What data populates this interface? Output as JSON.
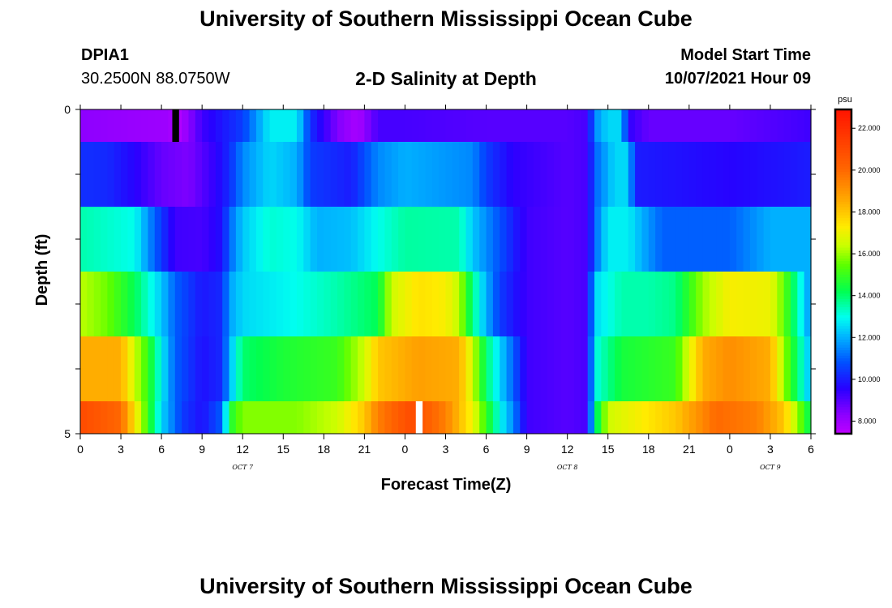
{
  "header": {
    "title": "University of Southern Mississippi Ocean Cube",
    "station": "DPIA1",
    "coordinates": "30.2500N  88.0750W",
    "subtitle": "2-D Salinity at Depth",
    "model_start_label": "Model Start Time",
    "model_start_value": "10/07/2021 Hour 09"
  },
  "footer": {
    "title": "University of Southern Mississippi Ocean Cube"
  },
  "chart_data": {
    "type": "heatmap",
    "title": "2-D Salinity at Depth",
    "xlabel": "Forecast Time(Z)",
    "ylabel": "Depth (ft)",
    "x_hours_range": [
      0,
      54
    ],
    "y_range": [
      0,
      5
    ],
    "y_ticks": [
      "0",
      "5"
    ],
    "x_tick_labels": [
      "0",
      "3",
      "6",
      "9",
      "12",
      "15",
      "18",
      "21",
      "0",
      "3",
      "6",
      "9",
      "12",
      "15",
      "18",
      "21",
      "0",
      "3",
      "6"
    ],
    "date_labels": [
      {
        "label": "OCT 7",
        "hour": 12
      },
      {
        "label": "OCT 8",
        "hour": 36
      },
      {
        "label": "OCT 9",
        "hour": 51
      }
    ],
    "colorbar": {
      "unit": "psu",
      "min": 7.4,
      "max": 22.9,
      "ticks": [
        "8.000",
        "10.000",
        "12.000",
        "14.000",
        "16.000",
        "18.000",
        "20.000",
        "22.000"
      ],
      "tick_values": [
        8,
        10,
        12,
        14,
        16,
        18,
        20,
        22
      ]
    },
    "cell_hours": 0.5,
    "layers": [
      {
        "depth": "0-0.5",
        "knots": [
          [
            0,
            8.3
          ],
          [
            4,
            8.1
          ],
          [
            6.5,
            8.0
          ],
          [
            7.3,
            7.6
          ],
          [
            9,
            9.3
          ],
          [
            12,
            10.5
          ],
          [
            14,
            12.8
          ],
          [
            16,
            12.8
          ],
          [
            17,
            10.3
          ],
          [
            19,
            8.5
          ],
          [
            20.5,
            7.8
          ],
          [
            22,
            9.2
          ],
          [
            24,
            9.2
          ],
          [
            30,
            9.0
          ],
          [
            36,
            9.0
          ],
          [
            37.5,
            9.2
          ],
          [
            38,
            11.5
          ],
          [
            39,
            12.5
          ],
          [
            40,
            12.5
          ],
          [
            40.5,
            9.5
          ],
          [
            42,
            8.8
          ],
          [
            48,
            8.8
          ],
          [
            54,
            9.3
          ]
        ],
        "gaps": [
          {
            "from": 6.8,
            "to": 7.3,
            "color": "#000000"
          }
        ]
      },
      {
        "depth": "0.5-1.5",
        "knots": [
          [
            0,
            10.3
          ],
          [
            2,
            10.2
          ],
          [
            4,
            9.6
          ],
          [
            6,
            8.8
          ],
          [
            8,
            8.5
          ],
          [
            9,
            9.0
          ],
          [
            10,
            9.5
          ],
          [
            11,
            10.2
          ],
          [
            12,
            11.5
          ],
          [
            14,
            12.5
          ],
          [
            16,
            12.0
          ],
          [
            17,
            10.5
          ],
          [
            20,
            10.0
          ],
          [
            22,
            11.5
          ],
          [
            24,
            12.0
          ],
          [
            29,
            11.5
          ],
          [
            30,
            10.5
          ],
          [
            32,
            9.5
          ],
          [
            36,
            9.0
          ],
          [
            37.5,
            9.2
          ],
          [
            38,
            11.0
          ],
          [
            39.5,
            12.5
          ],
          [
            40.5,
            12.5
          ],
          [
            41,
            10.0
          ],
          [
            48,
            9.6
          ],
          [
            54,
            10.0
          ]
        ]
      },
      {
        "depth": "1.5-2.5",
        "knots": [
          [
            0,
            13.5
          ],
          [
            4,
            13.0
          ],
          [
            5.5,
            11.0
          ],
          [
            7,
            9.3
          ],
          [
            9,
            9.2
          ],
          [
            10.5,
            9.8
          ],
          [
            11,
            11.0
          ],
          [
            12,
            12.3
          ],
          [
            14,
            13.2
          ],
          [
            16,
            13.0
          ],
          [
            17.5,
            12.0
          ],
          [
            20,
            12.2
          ],
          [
            22,
            13.0
          ],
          [
            24,
            13.6
          ],
          [
            28,
            13.5
          ],
          [
            29,
            12.3
          ],
          [
            31,
            10.8
          ],
          [
            33,
            9.3
          ],
          [
            36,
            9.0
          ],
          [
            37.5,
            9.2
          ],
          [
            38,
            11.0
          ],
          [
            39,
            12.8
          ],
          [
            40.5,
            12.8
          ],
          [
            41.5,
            12.0
          ],
          [
            43,
            11.0
          ],
          [
            48,
            11.0
          ],
          [
            51,
            12.0
          ],
          [
            53,
            12.0
          ],
          [
            54,
            12.0
          ]
        ]
      },
      {
        "depth": "2.5-3.5",
        "knots": [
          [
            0,
            16.3
          ],
          [
            2,
            15.6
          ],
          [
            4,
            14.2
          ],
          [
            6,
            12.3
          ],
          [
            7,
            11.0
          ],
          [
            9,
            9.9
          ],
          [
            10.5,
            10.2
          ],
          [
            11,
            11.8
          ],
          [
            12,
            12.5
          ],
          [
            16,
            13.0
          ],
          [
            19,
            13.5
          ],
          [
            22,
            14.2
          ],
          [
            23,
            16.5
          ],
          [
            25,
            17.5
          ],
          [
            27,
            17.2
          ],
          [
            28,
            16.3
          ],
          [
            29,
            13.8
          ],
          [
            30,
            12.0
          ],
          [
            31,
            10.5
          ],
          [
            33,
            9.3
          ],
          [
            36,
            9.0
          ],
          [
            37.5,
            9.2
          ],
          [
            38,
            12.5
          ],
          [
            40,
            13.5
          ],
          [
            42,
            13.5
          ],
          [
            44,
            13.8
          ],
          [
            46,
            16.0
          ],
          [
            48,
            17.2
          ],
          [
            51,
            17.0
          ],
          [
            52,
            15.5
          ],
          [
            53,
            13.5
          ],
          [
            54,
            11.5
          ]
        ]
      },
      {
        "depth": "3.5-4.5",
        "knots": [
          [
            0,
            18.5
          ],
          [
            3,
            18.5
          ],
          [
            4,
            16.5
          ],
          [
            5,
            15.0
          ],
          [
            6,
            12.8
          ],
          [
            7,
            11.0
          ],
          [
            9,
            9.8
          ],
          [
            10.5,
            10.2
          ],
          [
            11,
            12.0
          ],
          [
            12,
            14.0
          ],
          [
            15,
            14.6
          ],
          [
            19,
            15.0
          ],
          [
            21,
            16.5
          ],
          [
            22,
            18.0
          ],
          [
            25,
            18.8
          ],
          [
            28,
            18.5
          ],
          [
            29,
            16.5
          ],
          [
            30,
            14.0
          ],
          [
            31,
            12.5
          ],
          [
            32,
            11.0
          ],
          [
            33,
            9.3
          ],
          [
            36,
            9.0
          ],
          [
            37.5,
            9.2
          ],
          [
            38,
            13.0
          ],
          [
            40,
            14.5
          ],
          [
            44,
            15.0
          ],
          [
            46,
            18.5
          ],
          [
            48,
            19.2
          ],
          [
            51,
            18.5
          ],
          [
            52,
            16.0
          ],
          [
            53,
            14.0
          ],
          [
            54,
            12.0
          ]
        ]
      },
      {
        "depth": "4.5-5",
        "knots": [
          [
            0,
            21.0
          ],
          [
            3,
            20.0
          ],
          [
            4,
            17.5
          ],
          [
            5,
            15.0
          ],
          [
            6,
            12.5
          ],
          [
            7.5,
            10.5
          ],
          [
            9,
            9.8
          ],
          [
            10.5,
            11.0
          ],
          [
            11,
            14.5
          ],
          [
            12,
            15.8
          ],
          [
            16,
            15.8
          ],
          [
            19,
            16.5
          ],
          [
            21,
            18.0
          ],
          [
            22,
            19.5
          ],
          [
            24.5,
            21.0
          ],
          [
            27,
            19.5
          ],
          [
            29,
            17.0
          ],
          [
            30,
            15.0
          ],
          [
            31,
            13.0
          ],
          [
            32,
            11.5
          ],
          [
            33,
            9.3
          ],
          [
            36,
            9.0
          ],
          [
            37.5,
            9.2
          ],
          [
            38,
            13.5
          ],
          [
            39,
            16.5
          ],
          [
            44,
            18.0
          ],
          [
            47,
            20.0
          ],
          [
            50,
            19.5
          ],
          [
            52,
            18.0
          ],
          [
            53,
            16.0
          ],
          [
            54,
            14.0
          ]
        ],
        "gaps": [
          {
            "from": 24.8,
            "to": 25.3,
            "color": "#ffffff"
          }
        ]
      }
    ]
  }
}
